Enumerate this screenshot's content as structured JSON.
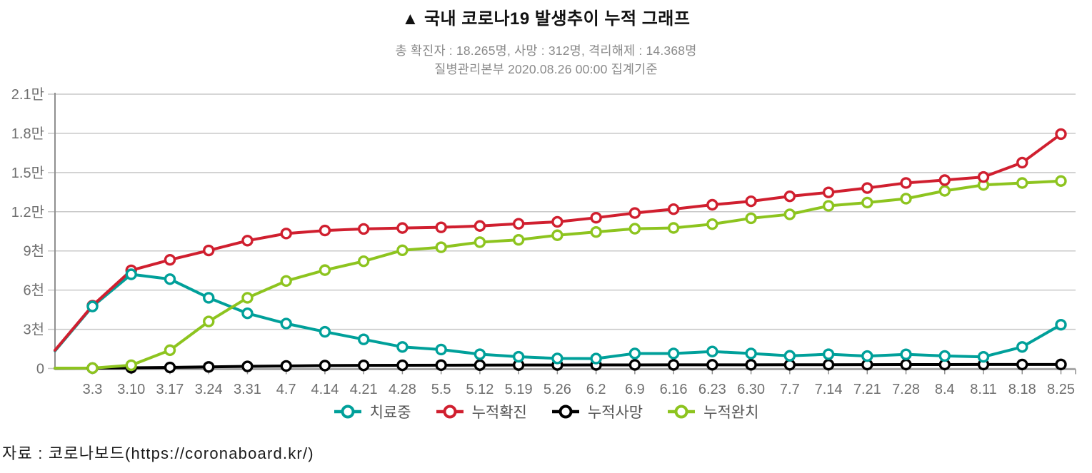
{
  "title": "▲ 국내 코로나19 발생추이 누적 그래프",
  "subtitle": {
    "line1": "총 확진자 : 18.265명, 사망 : 312명, 격리해제 : 14.368명",
    "line2": "질병관리본부 2020.08.26 00:00 집계기준"
  },
  "source": "자료 : 코로나보드(https://coronaboard.kr/)",
  "colors": {
    "in_treatment": "#00A09A",
    "cum_confirmed": "#D01F2F",
    "cum_deaths": "#000000",
    "cum_recovered": "#8DC41F",
    "gridline": "#c8c8c8",
    "axis": "#8f8f8f",
    "tick_label": "#6f6f6f"
  },
  "chart_data": {
    "type": "line",
    "title": "국내 코로나19 발생추이 누적 그래프",
    "xlabel": "",
    "ylabel": "",
    "ylim": [
      0,
      21000
    ],
    "grid": true,
    "legend_position": "bottom",
    "y_ticks": [
      {
        "value": 0,
        "label": "0"
      },
      {
        "value": 3000,
        "label": "3천"
      },
      {
        "value": 6000,
        "label": "6천"
      },
      {
        "value": 9000,
        "label": "9천"
      },
      {
        "value": 12000,
        "label": "1.2만"
      },
      {
        "value": 15000,
        "label": "1.5만"
      },
      {
        "value": 18000,
        "label": "1.8만"
      },
      {
        "value": 21000,
        "label": "2.1만"
      }
    ],
    "categories": [
      "3.3",
      "3.10",
      "3.17",
      "3.24",
      "3.31",
      "4.7",
      "4.14",
      "4.21",
      "4.28",
      "5.5",
      "5.12",
      "5.19",
      "5.26",
      "6.2",
      "6.9",
      "6.16",
      "6.23",
      "6.30",
      "7.7",
      "7.14",
      "7.21",
      "7.28",
      "8.4",
      "8.11",
      "8.18",
      "8.25"
    ],
    "series": [
      {
        "name": "치료중",
        "color": "#00A09A",
        "edge_start": 1350,
        "values": [
          4750,
          7210,
          6840,
          5410,
          4220,
          3440,
          2810,
          2230,
          1650,
          1450,
          1090,
          900,
          770,
          760,
          1150,
          1150,
          1300,
          1150,
          970,
          1090,
          950,
          1080,
          960,
          890,
          1650,
          3350
        ]
      },
      {
        "name": "누적확진",
        "color": "#D01F2F",
        "edge_start": 1400,
        "values": [
          4812,
          7513,
          8320,
          9037,
          9786,
          10331,
          10564,
          10683,
          10752,
          10804,
          10909,
          11078,
          11225,
          11541,
          11902,
          12198,
          12535,
          12800,
          13181,
          13479,
          13816,
          14203,
          14423,
          14660,
          15761,
          17945
        ]
      },
      {
        "name": "누적사망",
        "color": "#000000",
        "edge_start": 13,
        "values": [
          28,
          54,
          81,
          120,
          162,
          192,
          222,
          237,
          244,
          254,
          258,
          263,
          269,
          273,
          276,
          279,
          281,
          282,
          284,
          289,
          296,
          300,
          301,
          304,
          306,
          310
        ]
      },
      {
        "name": "누적완치",
        "color": "#8DC41F",
        "edge_start": 25,
        "values": [
          30,
          250,
          1400,
          3600,
          5410,
          6700,
          7530,
          8210,
          9050,
          9280,
          9670,
          9850,
          10200,
          10450,
          10700,
          10760,
          11050,
          11500,
          11800,
          12450,
          12700,
          13000,
          13600,
          14050,
          14200,
          14350
        ]
      }
    ]
  }
}
